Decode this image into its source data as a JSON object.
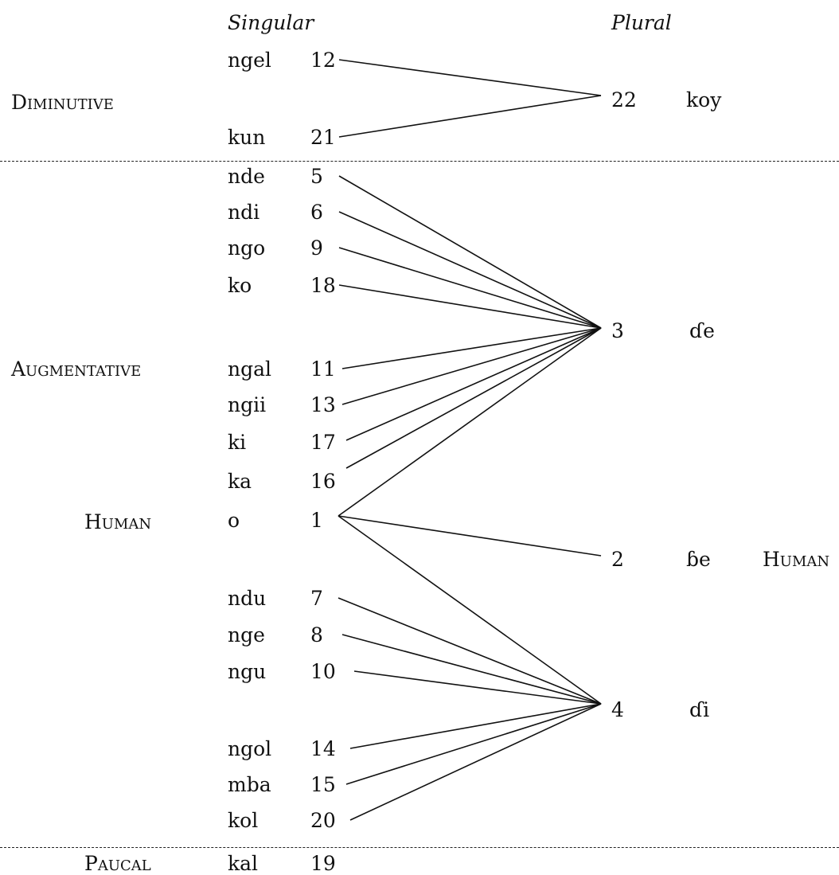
{
  "headers": {
    "singular": "Singular",
    "plural": "Plural"
  },
  "groups": {
    "diminutive": "Diminutive",
    "augmentative": "Augmentative",
    "human_left": "Human",
    "human_right": "Human",
    "paucal": "Paucal"
  },
  "singular_classes": [
    {
      "id": "s12",
      "prefix": "ngel",
      "class": "12",
      "plural": "22"
    },
    {
      "id": "s21",
      "prefix": "kun",
      "class": "21",
      "plural": "22"
    },
    {
      "id": "s5",
      "prefix": "nde",
      "class": "5",
      "plural": "3"
    },
    {
      "id": "s6",
      "prefix": "ndi",
      "class": "6",
      "plural": "3"
    },
    {
      "id": "s9",
      "prefix": "ngo",
      "class": "9",
      "plural": "3"
    },
    {
      "id": "s18",
      "prefix": "ko",
      "class": "18",
      "plural": "3"
    },
    {
      "id": "s11",
      "prefix": "ngal",
      "class": "11",
      "plural": "3"
    },
    {
      "id": "s13",
      "prefix": "ngii",
      "class": "13",
      "plural": "3"
    },
    {
      "id": "s17",
      "prefix": "ki",
      "class": "17",
      "plural": "3"
    },
    {
      "id": "s16",
      "prefix": "ka",
      "class": "16",
      "plural": "3"
    },
    {
      "id": "s1",
      "prefix": "o",
      "class": "1",
      "plural": "3, 2, 4"
    },
    {
      "id": "s7",
      "prefix": "ndu",
      "class": "7",
      "plural": "4"
    },
    {
      "id": "s8",
      "prefix": "nge",
      "class": "8",
      "plural": "4"
    },
    {
      "id": "s10",
      "prefix": "ngu",
      "class": "10",
      "plural": "4"
    },
    {
      "id": "s14",
      "prefix": "ngol",
      "class": "14",
      "plural": "4"
    },
    {
      "id": "s15",
      "prefix": "mba",
      "class": "15",
      "plural": "4"
    },
    {
      "id": "s20",
      "prefix": "kol",
      "class": "20",
      "plural": "4"
    },
    {
      "id": "s19",
      "prefix": "kal",
      "class": "19",
      "plural": ""
    }
  ],
  "plural_classes": [
    {
      "id": "p22",
      "class": "22",
      "prefix": "koy"
    },
    {
      "id": "p3",
      "class": "3",
      "prefix": "ɗe"
    },
    {
      "id": "p2",
      "class": "2",
      "prefix": "ɓe"
    },
    {
      "id": "p4",
      "class": "4",
      "prefix": "ɗi"
    }
  ]
}
